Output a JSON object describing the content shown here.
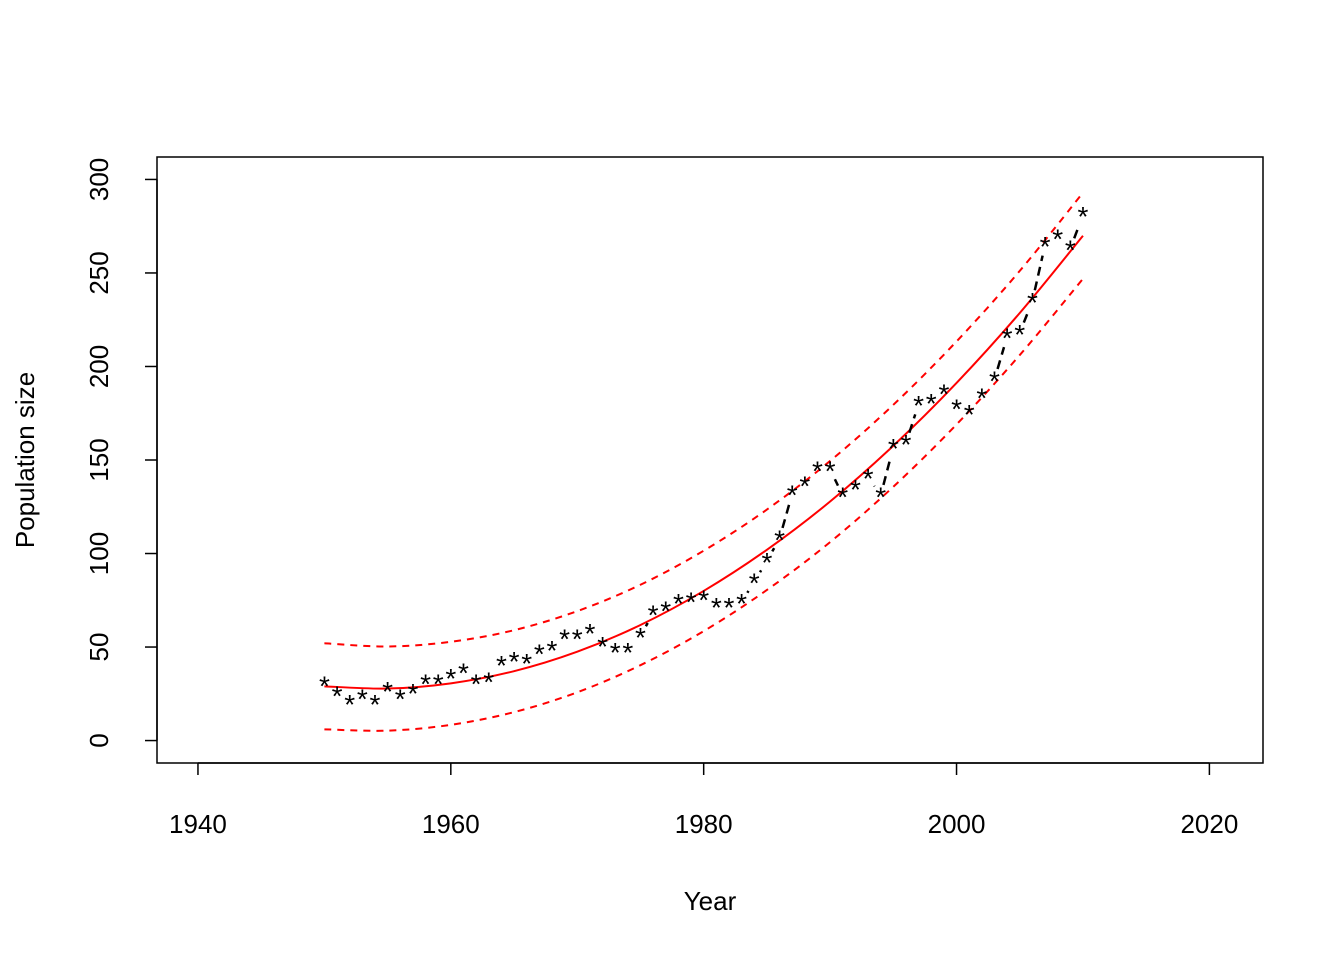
{
  "chart_data": {
    "type": "line",
    "x_label": "Year",
    "y_label": "Population size",
    "x": [
      1950,
      1951,
      1952,
      1953,
      1954,
      1955,
      1956,
      1957,
      1958,
      1959,
      1960,
      1961,
      1962,
      1963,
      1964,
      1965,
      1966,
      1967,
      1968,
      1969,
      1970,
      1971,
      1972,
      1973,
      1974,
      1975,
      1976,
      1977,
      1978,
      1979,
      1980,
      1981,
      1982,
      1983,
      1984,
      1985,
      1986,
      1987,
      1988,
      1989,
      1990,
      1991,
      1992,
      1993,
      1994,
      1995,
      1996,
      1997,
      1998,
      1999,
      2000,
      2001,
      2002,
      2003,
      2004,
      2005,
      2006,
      2007,
      2008,
      2009,
      2010
    ],
    "values": [
      30,
      24.5,
      20,
      23,
      20,
      27,
      23,
      26,
      31,
      31,
      34,
      37,
      31,
      32,
      41,
      43,
      42,
      47,
      49,
      55,
      55,
      58,
      51,
      48,
      48,
      56,
      68,
      70,
      74,
      75,
      76,
      72,
      72,
      74,
      85,
      96,
      108,
      132,
      137,
      145,
      145,
      131,
      135,
      141,
      131,
      157,
      159,
      180,
      181,
      186,
      178,
      175,
      184,
      193,
      216,
      218,
      235,
      265,
      269,
      263,
      281
    ],
    "marker": "*",
    "color": "#000000",
    "line_style": "dashed",
    "fit": {
      "color": "#ff0000",
      "x": [
        1950,
        1955,
        1960,
        1965,
        1970,
        1975,
        1980,
        1985,
        1990,
        1995,
        2000,
        2005,
        2010
      ],
      "values": [
        29.0,
        27.8,
        30.6,
        37.1,
        47.5,
        61.8,
        80.0,
        102.0,
        127.8,
        157.6,
        191.2,
        228.6,
        269.9
      ],
      "upper": [
        52.0,
        50.3,
        52.8,
        59.0,
        69.2,
        83.3,
        101.5,
        123.5,
        149.5,
        179.5,
        213.4,
        251.1,
        292.9
      ],
      "lower": [
        6.0,
        5.3,
        8.4,
        15.2,
        25.8,
        40.3,
        58.5,
        80.5,
        106.1,
        135.7,
        169.0,
        206.1,
        246.9
      ]
    },
    "xlim": [
      1936.76,
      2024.24
    ],
    "xticks": [
      1940,
      1960,
      1980,
      2000,
      2020
    ],
    "ylim": [
      -12,
      312
    ],
    "yticks": [
      0,
      50,
      100,
      150,
      200,
      250,
      300
    ]
  }
}
